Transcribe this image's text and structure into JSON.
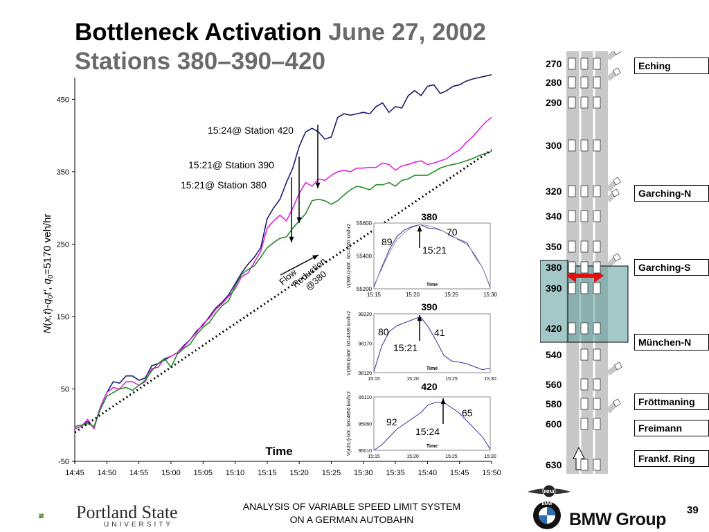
{
  "slide": {
    "title_main": "Bottleneck Activation ",
    "title_date": "June 27, 2002",
    "title_line2": "Stations 380–390–420",
    "footer_line1": "ANALYSIS OF VARIABLE SPEED LIMIT SYSTEM",
    "footer_line2": "ON A GERMAN AUTOBAHN",
    "slide_number": "39",
    "university": "Portland State",
    "university_sub": "UNIVERSITY",
    "company": "BMW Group",
    "logo_text_mini": "MINI",
    "logo_text_bmw": "BMW"
  },
  "chart_data": [
    {
      "type": "line",
      "xlabel": "Time",
      "ylabel": "N(x,t)-q0t', q0=5170 veh/hr",
      "x_ticks": [
        "14:45",
        "14:50",
        "14:55",
        "15:00",
        "15:05",
        "15:10",
        "15:15",
        "15:20",
        "15:25",
        "15:30",
        "15:35",
        "15:40",
        "15:45",
        "15:50"
      ],
      "y_ticks": [
        -50,
        50,
        150,
        250,
        350,
        450
      ],
      "ylim": [
        -50,
        480
      ],
      "x_minutes_from": "14:45",
      "series": [
        {
          "color": "#1a1a6e",
          "x": [
            0,
            1,
            2,
            3,
            4,
            5,
            6,
            7,
            8,
            9,
            10,
            11,
            12,
            13,
            14,
            15,
            16,
            17,
            18,
            19,
            20,
            21,
            22,
            23,
            24,
            25,
            26,
            27,
            28,
            29,
            30,
            31,
            32,
            33,
            34,
            35,
            36,
            37,
            38,
            39,
            40,
            41,
            42,
            43,
            44,
            45,
            46,
            47,
            48,
            49,
            50,
            51,
            52,
            53,
            54,
            55,
            56,
            57,
            58,
            59,
            60,
            61,
            62,
            63,
            64,
            65
          ],
          "values": [
            -5,
            -2,
            5,
            -3,
            25,
            45,
            60,
            58,
            68,
            68,
            62,
            65,
            82,
            85,
            90,
            95,
            100,
            110,
            118,
            130,
            138,
            150,
            162,
            170,
            180,
            195,
            210,
            222,
            232,
            245,
            285,
            300,
            312,
            335,
            355,
            385,
            405,
            410,
            405,
            395,
            398,
            425,
            430,
            428,
            430,
            432,
            430,
            440,
            445,
            432,
            440,
            438,
            455,
            462,
            455,
            468,
            470,
            458,
            462,
            468,
            470,
            475,
            478,
            480,
            482,
            484
          ]
        },
        {
          "color": "#e020e0",
          "x": [
            0,
            1,
            2,
            3,
            4,
            5,
            6,
            7,
            8,
            9,
            10,
            11,
            12,
            13,
            14,
            15,
            16,
            17,
            18,
            19,
            20,
            21,
            22,
            23,
            24,
            25,
            26,
            27,
            28,
            29,
            30,
            31,
            32,
            33,
            34,
            35,
            36,
            37,
            38,
            39,
            40,
            41,
            42,
            43,
            44,
            45,
            46,
            47,
            48,
            49,
            50,
            51,
            52,
            53,
            54,
            55,
            56,
            57,
            58,
            59,
            60,
            61,
            62,
            63,
            64,
            65
          ],
          "values": [
            -5,
            -2,
            8,
            -5,
            25,
            45,
            52,
            50,
            60,
            60,
            55,
            60,
            78,
            80,
            92,
            95,
            100,
            108,
            118,
            128,
            140,
            148,
            160,
            168,
            178,
            188,
            205,
            210,
            225,
            240,
            272,
            282,
            290,
            282,
            300,
            320,
            335,
            330,
            340,
            338,
            345,
            350,
            352,
            350,
            355,
            355,
            356,
            356,
            362,
            360,
            352,
            358,
            360,
            363,
            365,
            360,
            362,
            365,
            368,
            375,
            380,
            390,
            398,
            408,
            418,
            425
          ]
        },
        {
          "color": "#228b22",
          "x": [
            0,
            1,
            2,
            3,
            4,
            5,
            6,
            7,
            8,
            9,
            10,
            11,
            12,
            13,
            14,
            15,
            16,
            17,
            18,
            19,
            20,
            21,
            22,
            23,
            24,
            25,
            26,
            27,
            28,
            29,
            30,
            31,
            32,
            33,
            34,
            35,
            36,
            37,
            38,
            39,
            40,
            41,
            42,
            43,
            44,
            45,
            46,
            47,
            48,
            49,
            50,
            51,
            52,
            53,
            54,
            55,
            56,
            57,
            58,
            59,
            60,
            61,
            62,
            63,
            64,
            65
          ],
          "values": [
            -2,
            0,
            2,
            -2,
            22,
            40,
            45,
            50,
            52,
            48,
            55,
            62,
            75,
            85,
            92,
            80,
            98,
            106,
            112,
            125,
            135,
            142,
            155,
            165,
            172,
            192,
            208,
            215,
            220,
            232,
            245,
            252,
            258,
            260,
            272,
            282,
            292,
            310,
            312,
            310,
            305,
            310,
            318,
            325,
            330,
            328,
            325,
            332,
            332,
            335,
            330,
            338,
            340,
            345,
            345,
            345,
            350,
            355,
            358,
            360,
            362,
            365,
            368,
            372,
            375,
            378
          ]
        },
        {
          "color": "#000000",
          "dotted": true,
          "x": [
            0,
            65
          ],
          "values": [
            -10,
            380
          ]
        }
      ],
      "annotations": [
        {
          "text": "15:24@ Station 420"
        },
        {
          "text": "15:21@ Station 390"
        },
        {
          "text": "15:21@ Station 380"
        },
        {
          "text": "Flow Reduction @380"
        }
      ]
    },
    {
      "type": "line",
      "title": "380",
      "ylabel": "V(380,t)-b0t', b0=3300 km/hr2",
      "xlabel": "Time",
      "x_ticks": [
        "15:15",
        "15:20",
        "15:25",
        "15:30"
      ],
      "y_ticks": [
        55200,
        55400,
        55600
      ],
      "ylim": [
        55200,
        55600
      ],
      "x_minutes_from": "15:15",
      "labels": [
        "89",
        "70",
        "15:21"
      ],
      "series": [
        {
          "color": "#2a2a8a",
          "x": [
            0,
            1,
            2,
            3,
            4,
            5,
            6,
            7,
            8,
            9,
            10,
            11,
            12,
            13,
            14,
            15
          ],
          "values": [
            55210,
            55330,
            55440,
            55520,
            55560,
            55580,
            55590,
            55570,
            55565,
            55550,
            55520,
            55500,
            55480,
            55400,
            55330,
            55210
          ]
        },
        {
          "color": "#9090c0",
          "x": [
            0,
            1,
            2,
            3,
            4,
            5,
            6,
            7,
            8,
            9,
            10,
            11,
            12,
            13,
            14,
            15
          ],
          "values": [
            55220,
            55320,
            55420,
            55500,
            55545,
            55575,
            55590,
            55585,
            55570,
            55550,
            55525,
            55495,
            55470,
            55410,
            55330,
            55215
          ]
        }
      ]
    },
    {
      "type": "line",
      "title": "390",
      "ylabel": "V(390,t)-b0t', b0=4335 km/hr2",
      "xlabel": "Time",
      "x_ticks": [
        "15:15",
        "15:20",
        "15:25",
        "15:30"
      ],
      "y_ticks": [
        98120,
        98170,
        98220
      ],
      "ylim": [
        98120,
        98220
      ],
      "x_minutes_from": "15:15",
      "labels": [
        "80",
        "41",
        "15:21"
      ],
      "series": [
        {
          "color": "#3030a0",
          "x": [
            0,
            1,
            2,
            3,
            4,
            5,
            6,
            7,
            8,
            9,
            10,
            11,
            12,
            13,
            14,
            15
          ],
          "values": [
            98122,
            98165,
            98190,
            98200,
            98205,
            98210,
            98215,
            98198,
            98175,
            98150,
            98140,
            98138,
            98135,
            98130,
            98125,
            98128
          ]
        }
      ]
    },
    {
      "type": "line",
      "title": "420",
      "ylabel": "V(420,t)-b0t', b0=4850 km/hr2",
      "xlabel": "Time",
      "x_ticks": [
        "15:15",
        "15:20",
        "15:25",
        "15:30"
      ],
      "y_ticks": [
        95010,
        95060,
        95110
      ],
      "ylim": [
        95010,
        95110
      ],
      "x_minutes_from": "15:15",
      "labels": [
        "92",
        "65",
        "15:24"
      ],
      "series": [
        {
          "color": "#3030a0",
          "x": [
            0,
            1,
            2,
            3,
            4,
            5,
            6,
            7,
            8,
            9,
            10,
            11,
            12,
            13,
            14,
            15
          ],
          "values": [
            95010,
            95020,
            95035,
            95050,
            95060,
            95070,
            95080,
            95095,
            95100,
            95100,
            95090,
            95080,
            95065,
            95050,
            95035,
            95012
          ]
        }
      ]
    }
  ],
  "autobahn": {
    "stations": [
      {
        "km": "270"
      },
      {
        "km": "280"
      },
      {
        "km": "290"
      },
      {
        "km": "300"
      },
      {
        "km": "320"
      },
      {
        "km": "340"
      },
      {
        "km": "350"
      },
      {
        "km": "380"
      },
      {
        "km": "390"
      },
      {
        "km": "420"
      },
      {
        "km": "540"
      },
      {
        "km": "560"
      },
      {
        "km": "580"
      },
      {
        "km": "600"
      },
      {
        "km": "630"
      }
    ],
    "places": [
      "Eching",
      "Garching-N",
      "Garching-S",
      "München-N",
      "Fröttmaning",
      "Freimann",
      "Frankf. Ring"
    ]
  }
}
